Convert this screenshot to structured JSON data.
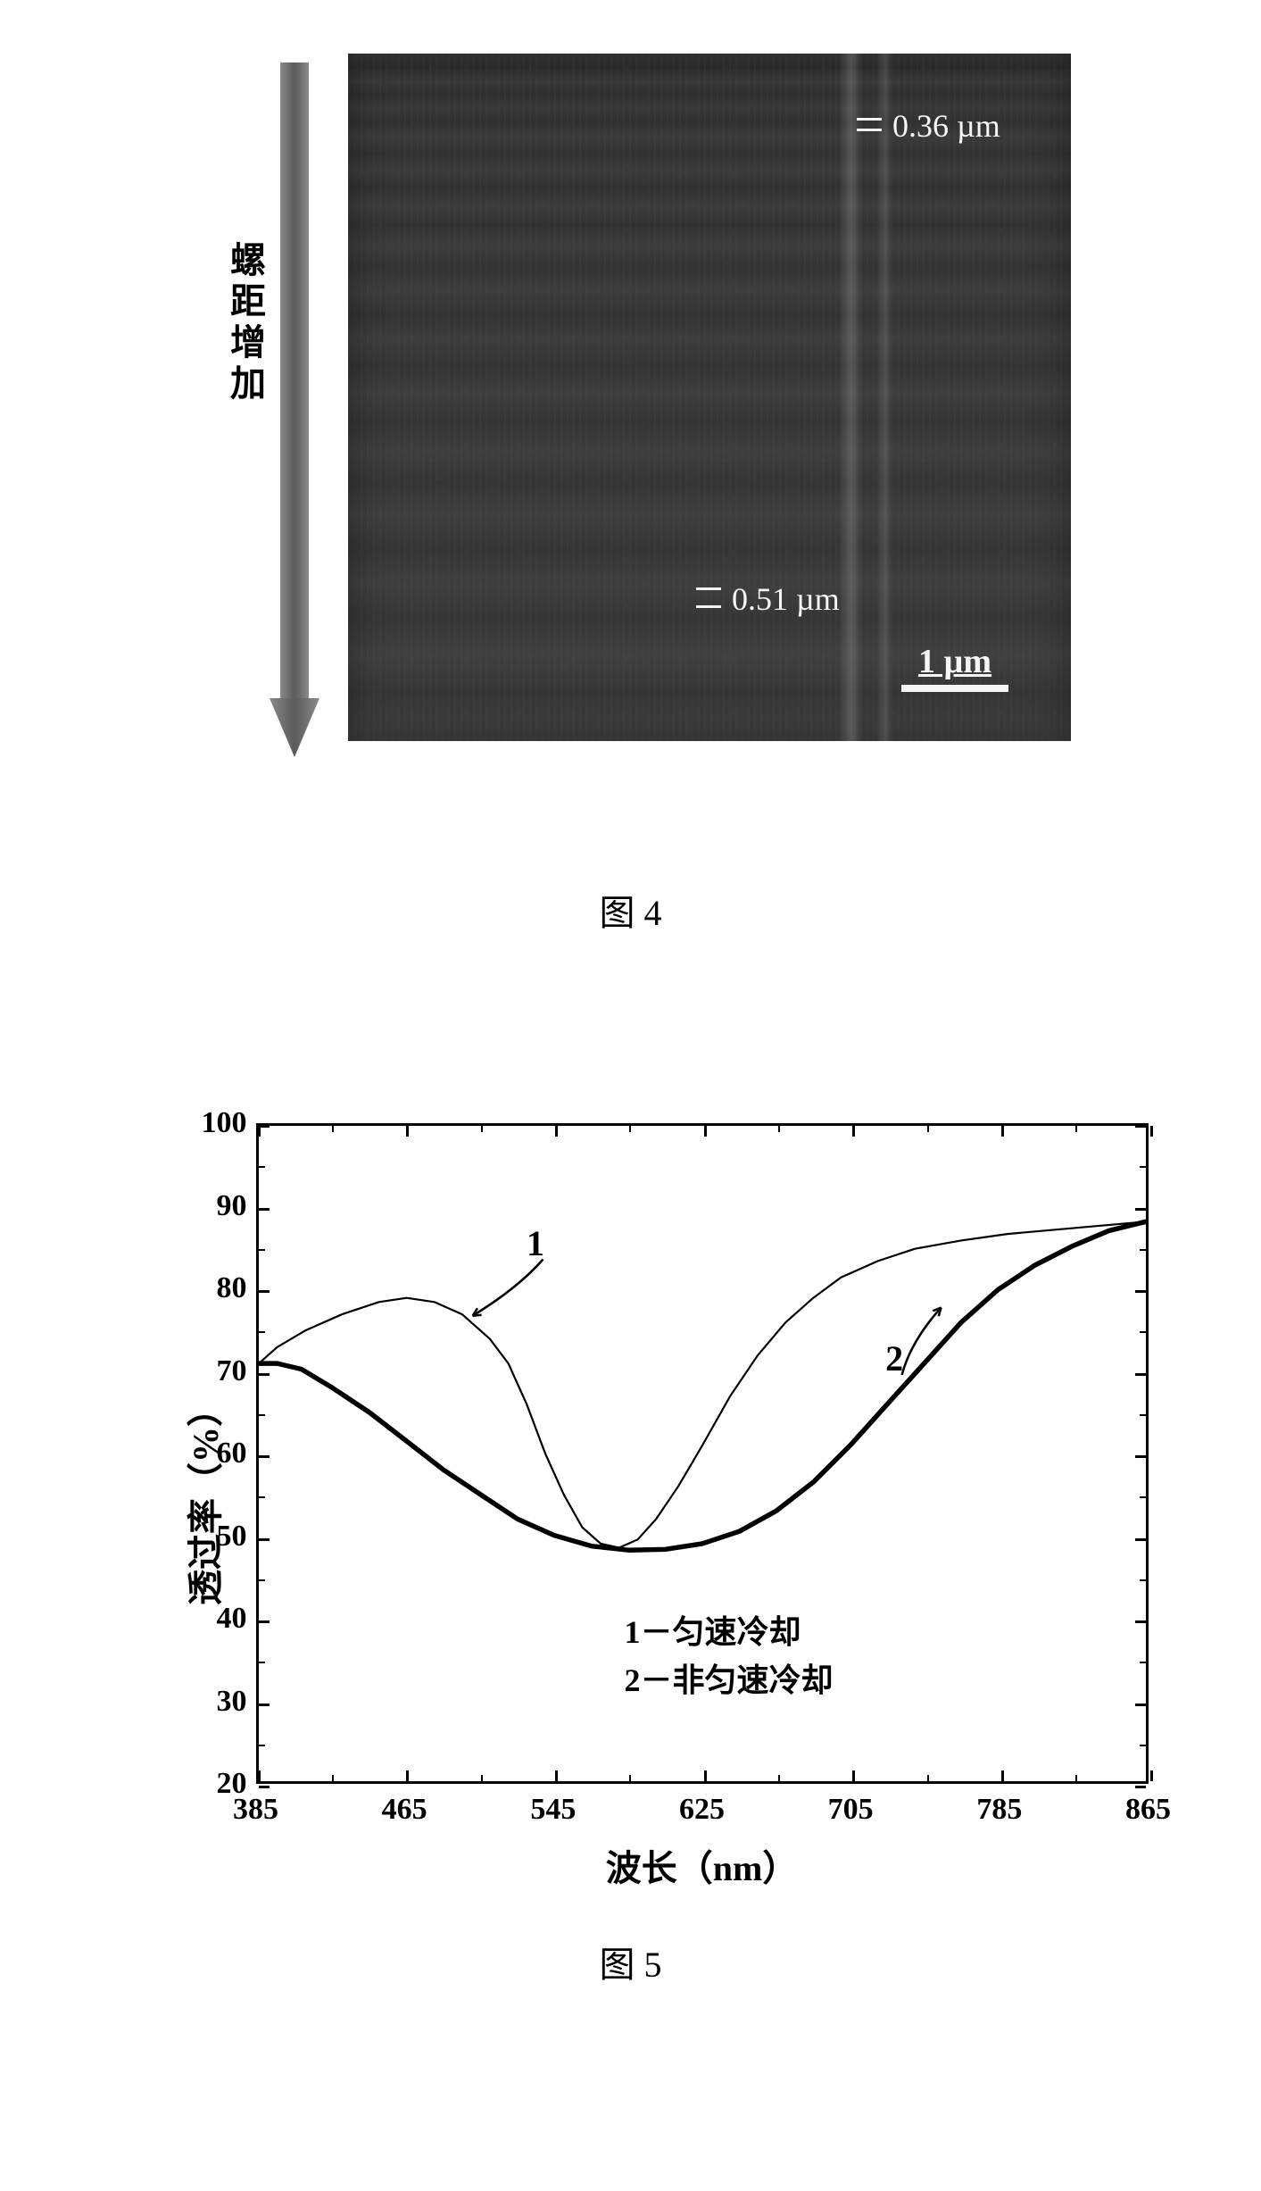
{
  "figure4": {
    "caption": "图 4",
    "arrow_label": "螺距增加",
    "image": {
      "background_shade": "#333333",
      "measurement_top": "0.36 µm",
      "measurement_bottom": "0.51 µm",
      "scalebar_label": "1 µm"
    },
    "arrow": {
      "fill": "#6b6b6b",
      "shaft_width": 34,
      "head_width": 58
    }
  },
  "figure5": {
    "caption": "图 5",
    "type": "line",
    "xlabel": "波长（nm）",
    "ylabel": "透过率（%）",
    "xlim": [
      385,
      865
    ],
    "ylim": [
      20,
      100
    ],
    "xtick_step": 80,
    "ytick_step": 10,
    "xticks": [
      385,
      465,
      545,
      625,
      705,
      785,
      865
    ],
    "yticks": [
      20,
      30,
      40,
      50,
      60,
      70,
      80,
      90,
      100
    ],
    "x_minor_step": 40,
    "y_minor_step": 5,
    "background_color": "#ffffff",
    "axis_color": "#000000",
    "label_fontsize": 40,
    "tick_fontsize": 34,
    "series": [
      {
        "id": 1,
        "name": "匀速冷却",
        "color": "#000000",
        "line_width": 2.2,
        "annotation": {
          "label": "1",
          "x": 535,
          "y": 86,
          "arrow_to_x": 500,
          "arrow_to_y": 77
        },
        "points": [
          [
            385,
            71
          ],
          [
            395,
            73
          ],
          [
            410,
            75
          ],
          [
            430,
            77
          ],
          [
            450,
            78.5
          ],
          [
            465,
            79
          ],
          [
            480,
            78.5
          ],
          [
            495,
            77
          ],
          [
            510,
            74
          ],
          [
            520,
            71
          ],
          [
            530,
            66
          ],
          [
            540,
            60
          ],
          [
            550,
            55
          ],
          [
            560,
            51
          ],
          [
            570,
            49
          ],
          [
            580,
            48.5
          ],
          [
            590,
            49.5
          ],
          [
            600,
            52
          ],
          [
            612,
            56
          ],
          [
            625,
            61
          ],
          [
            640,
            67
          ],
          [
            655,
            72
          ],
          [
            670,
            76
          ],
          [
            685,
            79
          ],
          [
            700,
            81.5
          ],
          [
            720,
            83.5
          ],
          [
            740,
            85
          ],
          [
            765,
            86
          ],
          [
            790,
            86.8
          ],
          [
            820,
            87.4
          ],
          [
            850,
            88
          ],
          [
            865,
            88.3
          ]
        ]
      },
      {
        "id": 2,
        "name": "非匀速冷却",
        "color": "#000000",
        "line_width": 5.5,
        "annotation": {
          "label": "2",
          "x": 728,
          "y": 72,
          "arrow_to_x": 752,
          "arrow_to_y": 78
        },
        "points": [
          [
            385,
            71
          ],
          [
            395,
            71
          ],
          [
            408,
            70.3
          ],
          [
            425,
            68
          ],
          [
            445,
            65
          ],
          [
            465,
            61.5
          ],
          [
            485,
            58
          ],
          [
            505,
            55
          ],
          [
            525,
            52
          ],
          [
            545,
            50
          ],
          [
            565,
            48.7
          ],
          [
            585,
            48.2
          ],
          [
            605,
            48.3
          ],
          [
            625,
            49
          ],
          [
            645,
            50.5
          ],
          [
            665,
            53
          ],
          [
            685,
            56.5
          ],
          [
            705,
            61
          ],
          [
            725,
            66
          ],
          [
            745,
            71
          ],
          [
            765,
            76
          ],
          [
            785,
            80
          ],
          [
            805,
            83
          ],
          [
            825,
            85.3
          ],
          [
            845,
            87.2
          ],
          [
            865,
            88.3
          ]
        ]
      }
    ],
    "legend": {
      "line1": "1－匀速冷却",
      "line2": "2－非匀速冷却"
    }
  }
}
